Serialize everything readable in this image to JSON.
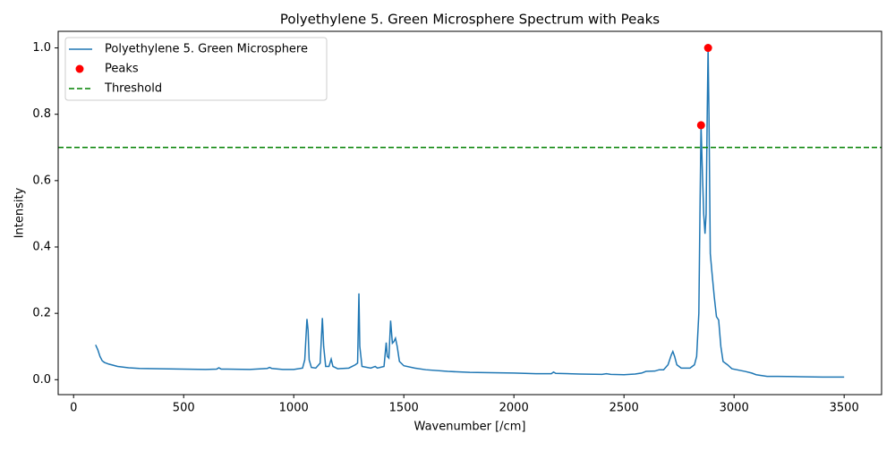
{
  "chart_data": {
    "type": "line",
    "title": "Polyethylene 5. Green Microsphere Spectrum with Peaks",
    "xlabel": "Wavenumber [/cm]",
    "ylabel": "Intensity",
    "xlim": [
      -70,
      3670
    ],
    "ylim": [
      -0.045,
      1.05
    ],
    "xticks": [
      0,
      500,
      1000,
      1500,
      2000,
      2500,
      3000,
      3500
    ],
    "yticks": [
      {
        "value": 0,
        "label": "0.0"
      },
      {
        "value": 0.2,
        "label": "0.2"
      },
      {
        "value": 0.4,
        "label": "0.4"
      },
      {
        "value": 0.6,
        "label": "0.6"
      },
      {
        "value": 0.8,
        "label": "0.8"
      },
      {
        "value": 1.0,
        "label": "1.0"
      }
    ],
    "legend": "upper left",
    "series": [
      {
        "name": "Polyethylene 5. Green Microsphere",
        "type": "line",
        "color": "#1f77b4",
        "x": [
          100,
          110,
          120,
          130,
          140,
          160,
          200,
          250,
          300,
          400,
          500,
          600,
          650,
          660,
          670,
          800,
          880,
          890,
          900,
          950,
          1000,
          1040,
          1050,
          1060,
          1065,
          1070,
          1080,
          1100,
          1120,
          1130,
          1136,
          1145,
          1160,
          1170,
          1178,
          1200,
          1250,
          1280,
          1290,
          1296,
          1300,
          1310,
          1350,
          1370,
          1380,
          1410,
          1420,
          1425,
          1432,
          1440,
          1448,
          1455,
          1462,
          1470,
          1480,
          1500,
          1550,
          1600,
          1700,
          1800,
          1900,
          2000,
          2100,
          2170,
          2180,
          2190,
          2300,
          2400,
          2420,
          2440,
          2500,
          2550,
          2580,
          2600,
          2640,
          2660,
          2680,
          2700,
          2715,
          2722,
          2730,
          2740,
          2760,
          2800,
          2820,
          2830,
          2840,
          2845,
          2850,
          2855,
          2862,
          2868,
          2873,
          2878,
          2882,
          2886,
          2892,
          2900,
          2910,
          2920,
          2930,
          2940,
          2950,
          2970,
          2990,
          3050,
          3080,
          3100,
          3150,
          3200,
          3300,
          3400,
          3500
        ],
        "values": [
          0.105,
          0.09,
          0.07,
          0.057,
          0.052,
          0.047,
          0.04,
          0.036,
          0.034,
          0.033,
          0.032,
          0.031,
          0.032,
          0.036,
          0.032,
          0.031,
          0.034,
          0.037,
          0.034,
          0.031,
          0.031,
          0.035,
          0.06,
          0.183,
          0.15,
          0.06,
          0.037,
          0.035,
          0.05,
          0.186,
          0.1,
          0.04,
          0.04,
          0.062,
          0.04,
          0.033,
          0.035,
          0.045,
          0.05,
          0.26,
          0.1,
          0.04,
          0.035,
          0.04,
          0.035,
          0.04,
          0.112,
          0.07,
          0.065,
          0.178,
          0.11,
          0.115,
          0.125,
          0.1,
          0.055,
          0.042,
          0.035,
          0.03,
          0.025,
          0.022,
          0.021,
          0.02,
          0.018,
          0.018,
          0.023,
          0.019,
          0.017,
          0.016,
          0.018,
          0.016,
          0.015,
          0.017,
          0.02,
          0.025,
          0.026,
          0.03,
          0.03,
          0.045,
          0.075,
          0.085,
          0.07,
          0.045,
          0.035,
          0.035,
          0.045,
          0.07,
          0.2,
          0.5,
          0.767,
          0.65,
          0.5,
          0.44,
          0.5,
          0.8,
          1.0,
          0.8,
          0.38,
          0.32,
          0.25,
          0.19,
          0.18,
          0.1,
          0.055,
          0.045,
          0.033,
          0.025,
          0.02,
          0.015,
          0.01,
          0.01,
          0.009,
          0.008,
          0.008
        ]
      },
      {
        "name": "Peaks",
        "type": "scatter",
        "color": "#ff0000",
        "x": [
          2850,
          2882
        ],
        "values": [
          0.767,
          1.0
        ]
      },
      {
        "name": "Threshold",
        "type": "hline",
        "color": "#008000",
        "values": [
          0.7
        ]
      }
    ]
  }
}
